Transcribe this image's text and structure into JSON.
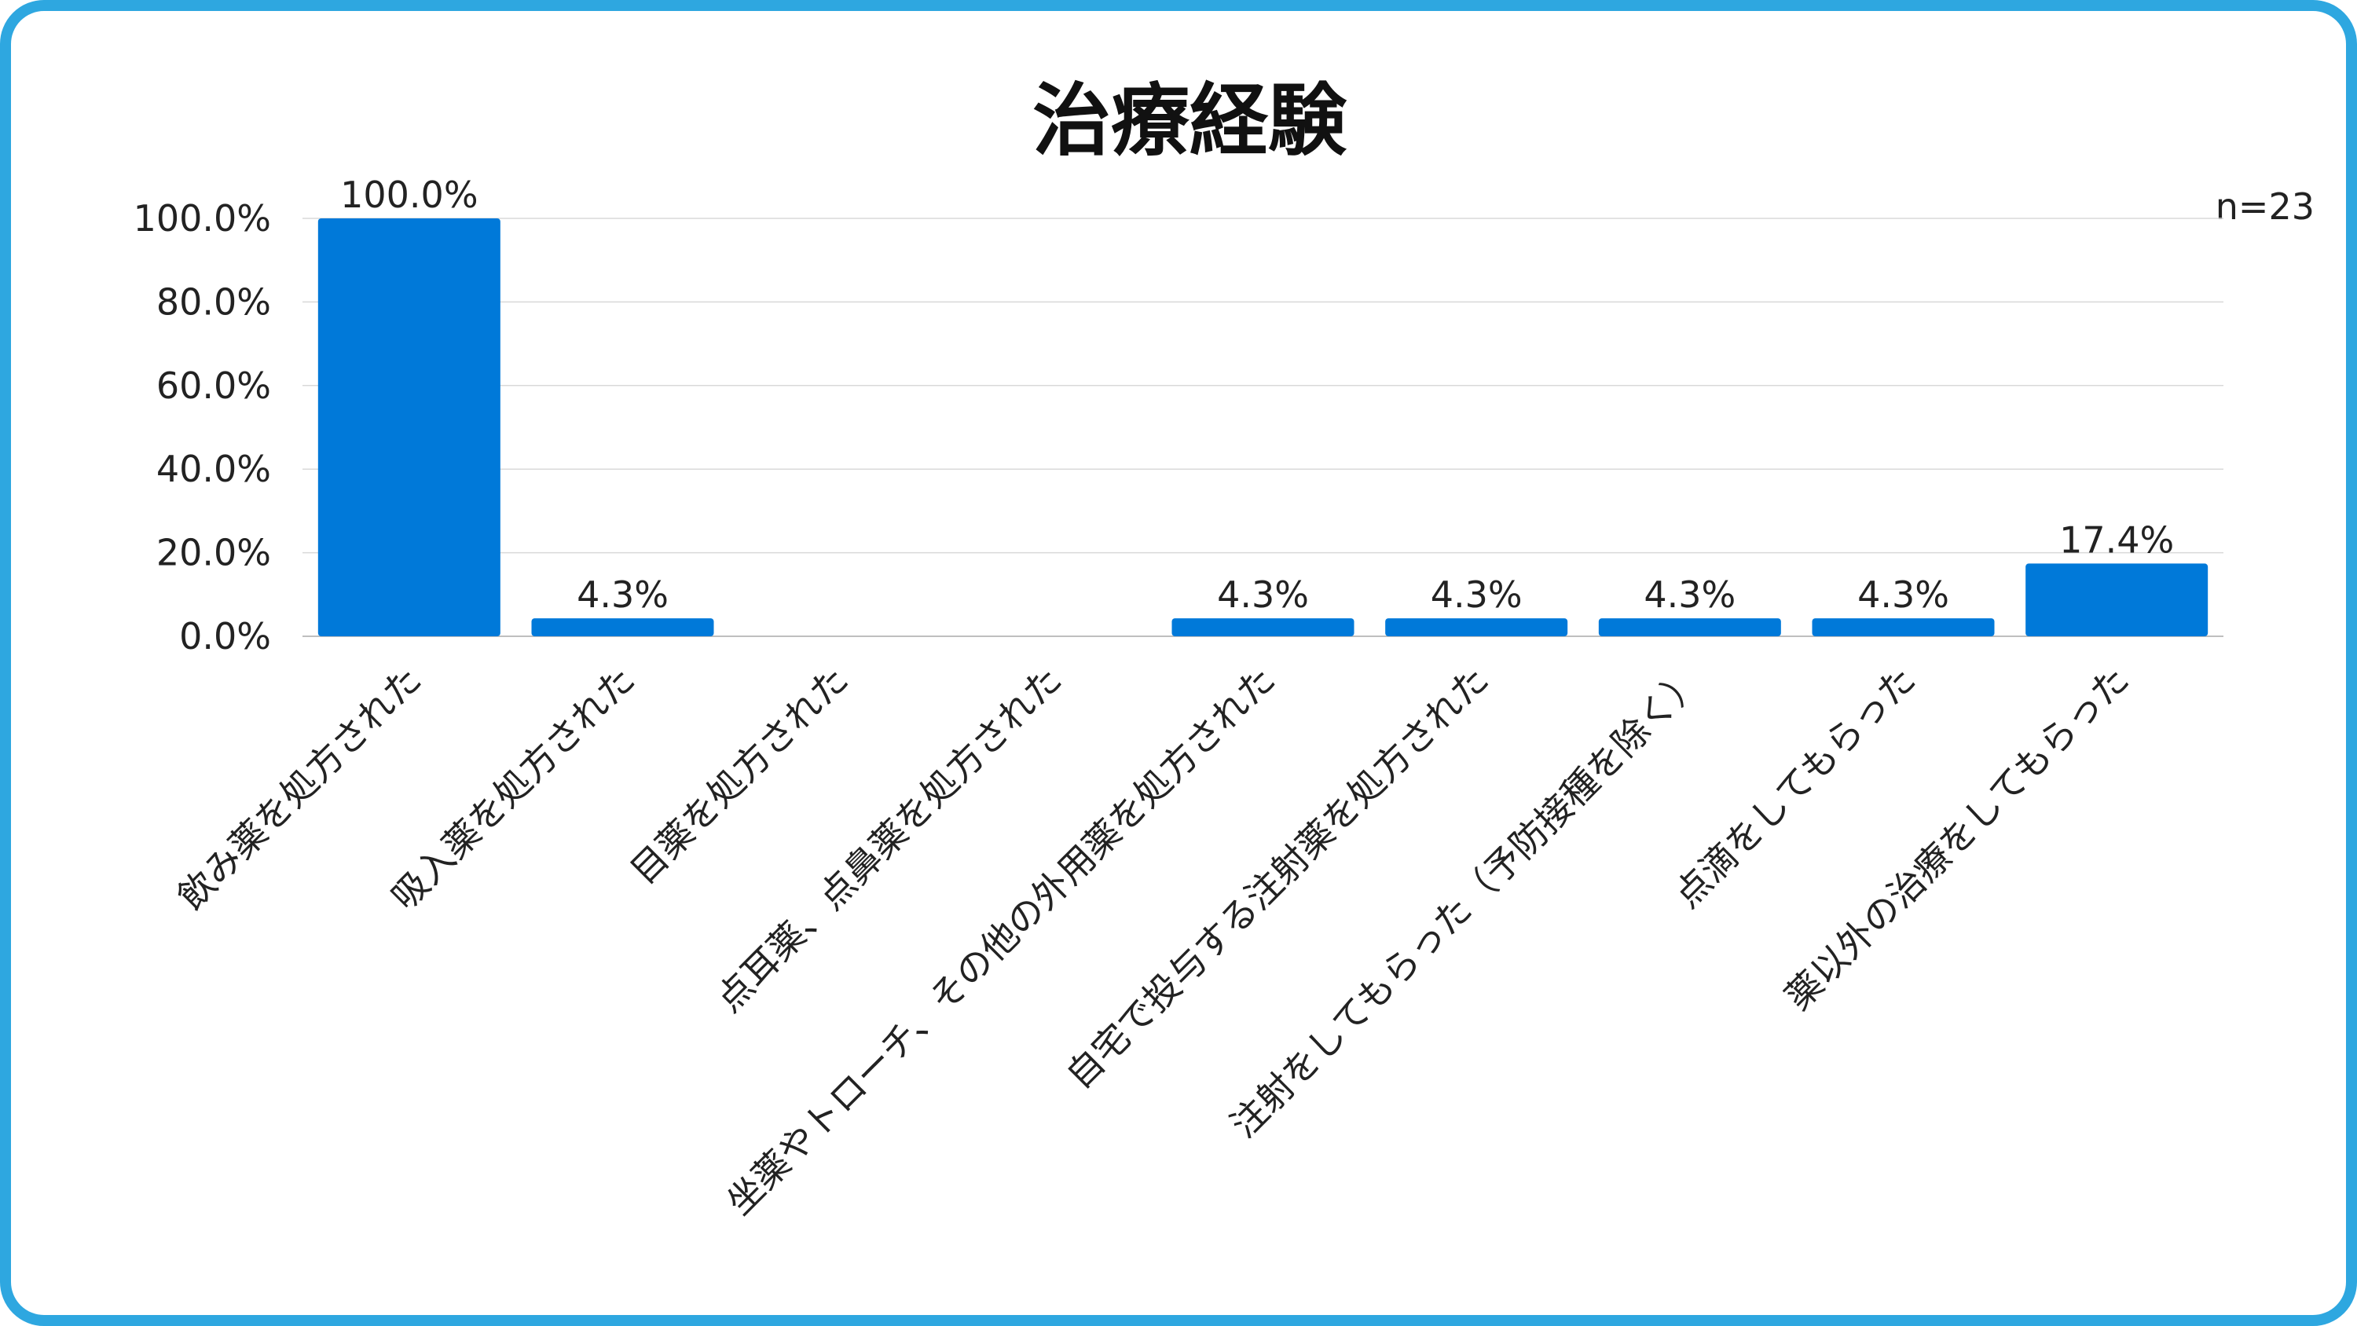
{
  "chart_data": {
    "type": "bar",
    "title": "治療経験",
    "n_label": "n=23",
    "categories": [
      "飲み薬を処方された",
      "吸入薬を処方された",
      "目薬を処方された",
      "点耳薬、点鼻薬を処方された",
      "坐薬やトローチ、その他の外用薬を処方された",
      "自宅で投与する注射薬を処方された",
      "注射をしてもらった（予防接種を除く）",
      "点滴をしてもらった",
      "薬以外の治療をしてもらった"
    ],
    "values": [
      100.0,
      4.3,
      0,
      0,
      4.3,
      4.3,
      4.3,
      4.3,
      17.4
    ],
    "data_labels": [
      "100.0%",
      "4.3%",
      "",
      "",
      "4.3%",
      "4.3%",
      "4.3%",
      "4.3%",
      "17.4%"
    ],
    "y_ticks": [
      "0.0%",
      "20.0%",
      "40.0%",
      "60.0%",
      "80.0%",
      "100.0%"
    ],
    "ylim": [
      0,
      100
    ],
    "grid": true,
    "bar_color": "#0079d9",
    "frame_color": "#2ea7e0"
  }
}
